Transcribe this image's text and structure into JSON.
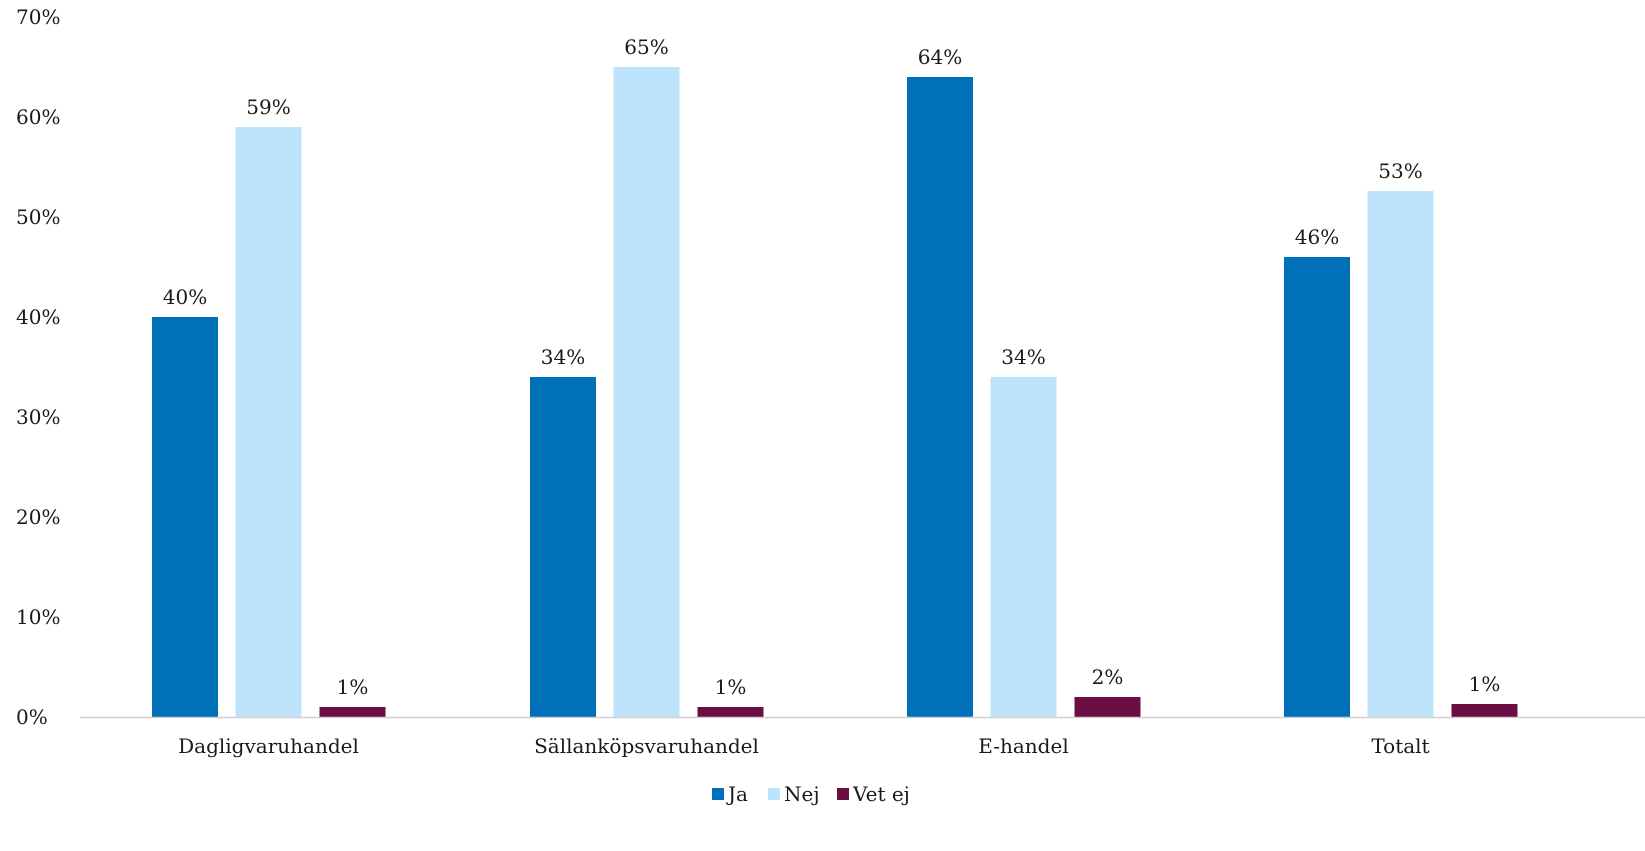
{
  "chart_data": {
    "type": "bar",
    "categories": [
      "Dagligvaruhandel",
      "Sällanköpsvaruhandel",
      "E-handel",
      "Totalt"
    ],
    "series": [
      {
        "name": "Ja",
        "color": "#0070B8",
        "values": [
          40,
          34,
          64,
          46
        ],
        "labels": [
          "40%",
          "34%",
          "64%",
          "46%"
        ]
      },
      {
        "name": "Nej",
        "color": "#BDE4FA",
        "values": [
          59,
          65,
          34,
          52.6
        ],
        "labels": [
          "59%",
          "65%",
          "34%",
          "53%"
        ]
      },
      {
        "name": "Vet ej",
        "color": "#6B0E44",
        "values": [
          1,
          1,
          2,
          1.3
        ],
        "labels": [
          "1%",
          "1%",
          "2%",
          "1%"
        ]
      }
    ],
    "ylim": [
      0,
      70
    ],
    "yticks": [
      0,
      10,
      20,
      30,
      40,
      50,
      60,
      70
    ],
    "ytick_labels": [
      "0%",
      "10%",
      "20%",
      "30%",
      "40%",
      "50%",
      "60%",
      "70%"
    ],
    "grid": false,
    "legend": "bottom-center",
    "colors": {
      "axis_line": "#D0D0D0",
      "text": "#1A1A1A"
    }
  }
}
